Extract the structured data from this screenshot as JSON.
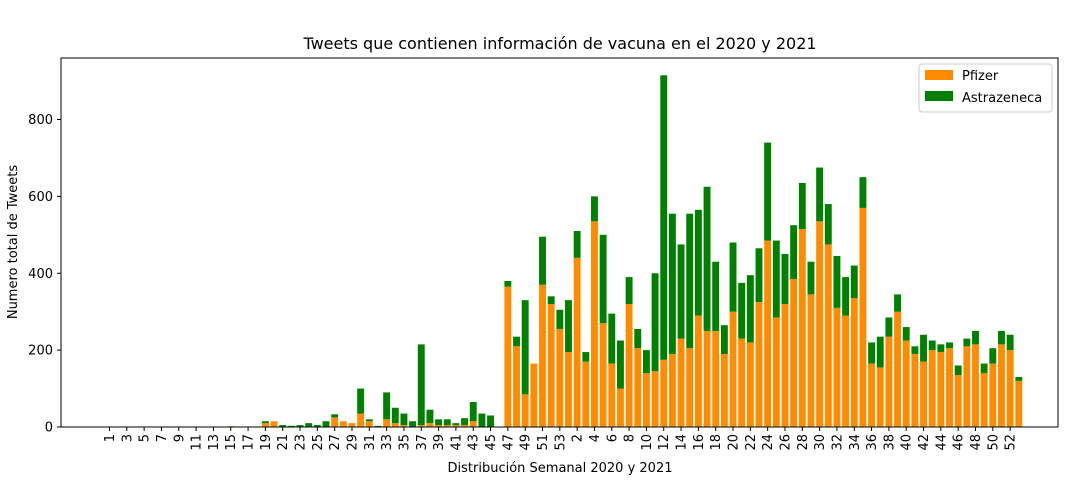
{
  "chart_data": {
    "type": "bar",
    "stacked": true,
    "title": "Tweets que contienen información de vacuna en el 2020 y 2021",
    "xlabel": "Distribución Semanal 2020 y 2021",
    "ylabel": "Numero total de Tweets",
    "ylim": [
      0,
      960
    ],
    "yticks": [
      0,
      200,
      400,
      600,
      800
    ],
    "legend_position": "top-right",
    "categories": [
      "1",
      "2",
      "3",
      "4",
      "5",
      "6",
      "7",
      "8",
      "9",
      "10",
      "11",
      "12",
      "13",
      "14",
      "15",
      "16",
      "17",
      "18",
      "19",
      "20",
      "21",
      "22",
      "23",
      "24",
      "25",
      "26",
      "27",
      "28",
      "29",
      "30",
      "31",
      "32",
      "33",
      "34",
      "35",
      "36",
      "37",
      "38",
      "39",
      "40",
      "41",
      "42",
      "43",
      "44",
      "45",
      "46",
      "47",
      "48",
      "49",
      "50",
      "51",
      "52",
      "53",
      "1",
      "2",
      "3",
      "4",
      "5",
      "6",
      "7",
      "8",
      "9",
      "10",
      "11",
      "12",
      "13",
      "14",
      "15",
      "16",
      "17",
      "18",
      "19",
      "20",
      "21",
      "22",
      "23",
      "24",
      "25",
      "26",
      "27",
      "28",
      "29",
      "30",
      "31",
      "32",
      "33",
      "34",
      "35",
      "36",
      "37",
      "38",
      "39",
      "40",
      "41",
      "42",
      "43",
      "44",
      "45",
      "46",
      "47",
      "48",
      "49",
      "50",
      "51",
      "52",
      "53"
    ],
    "series": [
      {
        "name": "Pfizer",
        "color": "#ff8c00",
        "values": [
          0,
          0,
          0,
          0,
          0,
          0,
          0,
          0,
          0,
          0,
          0,
          0,
          0,
          0,
          2,
          0,
          0,
          0,
          10,
          15,
          0,
          0,
          0,
          0,
          0,
          0,
          25,
          15,
          10,
          35,
          15,
          0,
          20,
          10,
          5,
          0,
          5,
          10,
          5,
          5,
          5,
          5,
          15,
          0,
          0,
          0,
          365,
          210,
          85,
          165,
          370,
          320,
          255,
          195,
          440,
          170,
          535,
          270,
          165,
          100,
          320,
          205,
          140,
          145,
          175,
          190,
          230,
          205,
          290,
          250,
          250,
          190,
          300,
          230,
          220,
          325,
          485,
          285,
          320,
          385,
          515,
          345,
          535,
          475,
          310,
          290,
          335,
          570,
          165,
          155,
          235,
          300,
          225,
          190,
          170,
          200,
          195,
          205,
          135,
          210,
          215,
          140,
          165,
          215,
          200,
          120
        ]
      },
      {
        "name": "Astrazeneca",
        "color": "#008000",
        "values": [
          0,
          0,
          0,
          0,
          0,
          0,
          0,
          0,
          0,
          0,
          0,
          0,
          0,
          0,
          0,
          0,
          0,
          0,
          5,
          0,
          5,
          3,
          5,
          10,
          5,
          15,
          8,
          0,
          0,
          65,
          5,
          3,
          70,
          40,
          30,
          15,
          210,
          35,
          15,
          15,
          5,
          18,
          50,
          35,
          30,
          0,
          15,
          25,
          245,
          0,
          125,
          20,
          50,
          135,
          70,
          25,
          65,
          230,
          130,
          125,
          70,
          50,
          60,
          255,
          740,
          365,
          245,
          350,
          275,
          375,
          180,
          75,
          180,
          145,
          175,
          140,
          255,
          200,
          130,
          140,
          120,
          85,
          140,
          105,
          135,
          100,
          85,
          80,
          55,
          80,
          50,
          45,
          35,
          20,
          70,
          25,
          20,
          15,
          25,
          20,
          35,
          25,
          40,
          35,
          40,
          10
        ]
      }
    ]
  }
}
